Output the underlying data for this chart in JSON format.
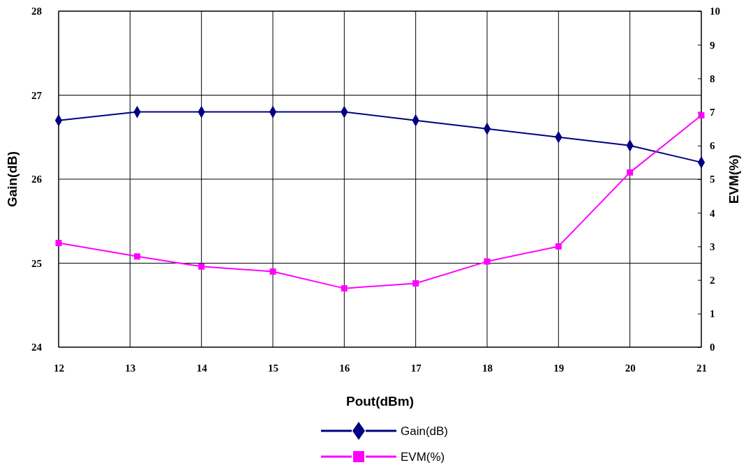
{
  "chart_data": {
    "type": "line",
    "xlabel": "Pout(dBm)",
    "ylabel": "Gain(dB)",
    "y2label": "EVM(%)",
    "xlim": [
      12,
      21
    ],
    "xticks": [
      12,
      13,
      14,
      15,
      16,
      17,
      18,
      19,
      20,
      21
    ],
    "ylim": [
      24,
      28
    ],
    "yticks": [
      24,
      25,
      26,
      27,
      28
    ],
    "y2lim": [
      0,
      10
    ],
    "y2ticks": [
      0,
      1,
      2,
      3,
      4,
      5,
      6,
      7,
      8,
      9,
      10
    ],
    "grid": true,
    "legend": "bottom",
    "line_style": "solid",
    "series": [
      {
        "name": "Gain(dB)",
        "color": "#000080",
        "marker": "diamond",
        "x": [
          12,
          13.1,
          14,
          15,
          16,
          17,
          18,
          19,
          20,
          21
        ],
        "values": [
          26.7,
          26.8,
          26.8,
          26.8,
          26.8,
          26.7,
          26.6,
          26.5,
          26.4,
          26.2
        ]
      },
      {
        "name": "EVM(%)",
        "color": "#ff00ff",
        "marker": "square",
        "axis": "y2",
        "x": [
          12,
          13.1,
          14,
          15,
          16,
          17,
          18,
          19,
          20,
          21
        ],
        "values": [
          3.1,
          2.7,
          2.4,
          2.25,
          1.75,
          1.9,
          2.55,
          3.0,
          5.2,
          6.9
        ]
      }
    ]
  }
}
